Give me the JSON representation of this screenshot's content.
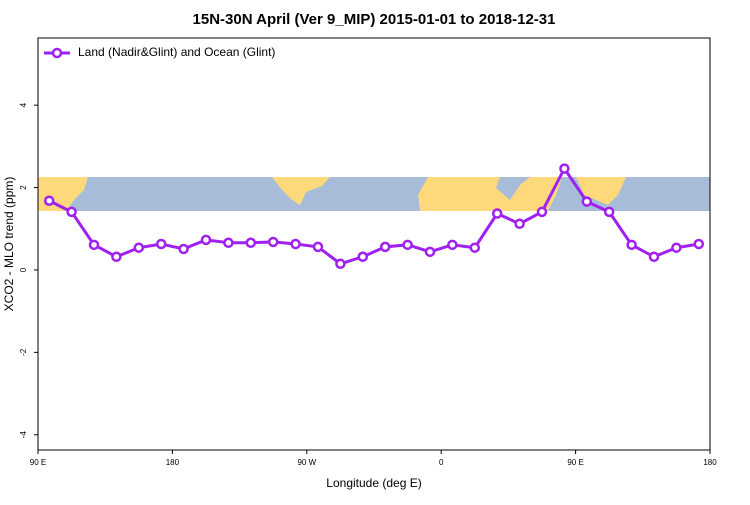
{
  "chart_data": {
    "type": "line",
    "title": "15N-30N April (Ver 9_MIP)   2015-01-01 to 2018-12-31",
    "x_label": "Longitude (deg E)",
    "y_label": "XCO2 - MLO trend (ppm)",
    "xlim": [
      90,
      540
    ],
    "xticks": [
      {
        "value": 90,
        "label": "90 E"
      },
      180,
      {
        "value": 270,
        "label": "90 W"
      },
      {
        "value": 360,
        "label": "0"
      },
      {
        "value": 450,
        "label": "90 E"
      },
      {
        "value": 540,
        "label": "180"
      }
    ],
    "ylim": [
      -4.37,
      5.63
    ],
    "yticks": [
      -4,
      -2,
      0,
      2,
      4
    ],
    "legend": "top-left",
    "x": [
      97.5,
      112.5,
      127.5,
      142.5,
      157.5,
      172.5,
      187.5,
      202.5,
      217.5,
      232.5,
      247.5,
      262.5,
      277.5,
      292.5,
      307.5,
      322.5,
      337.5,
      352.5,
      367.5,
      382.5,
      397.5,
      412.5,
      427.5,
      442.5,
      457.5,
      472.5,
      487.5,
      502.5,
      517.5,
      532.5
    ],
    "series": [
      {
        "name": "Land (Nadir&Glint) and Ocean (Glint)",
        "color": "#a020f0",
        "values": [
          1.68,
          1.41,
          0.61,
          0.32,
          0.54,
          0.63,
          0.51,
          0.73,
          0.66,
          0.66,
          0.68,
          0.63,
          0.56,
          0.15,
          0.32,
          0.56,
          0.61,
          0.44,
          0.61,
          0.54,
          1.37,
          1.12,
          1.41,
          2.46,
          1.66,
          1.41,
          0.61,
          0.32,
          0.54,
          0.63
        ]
      }
    ]
  }
}
